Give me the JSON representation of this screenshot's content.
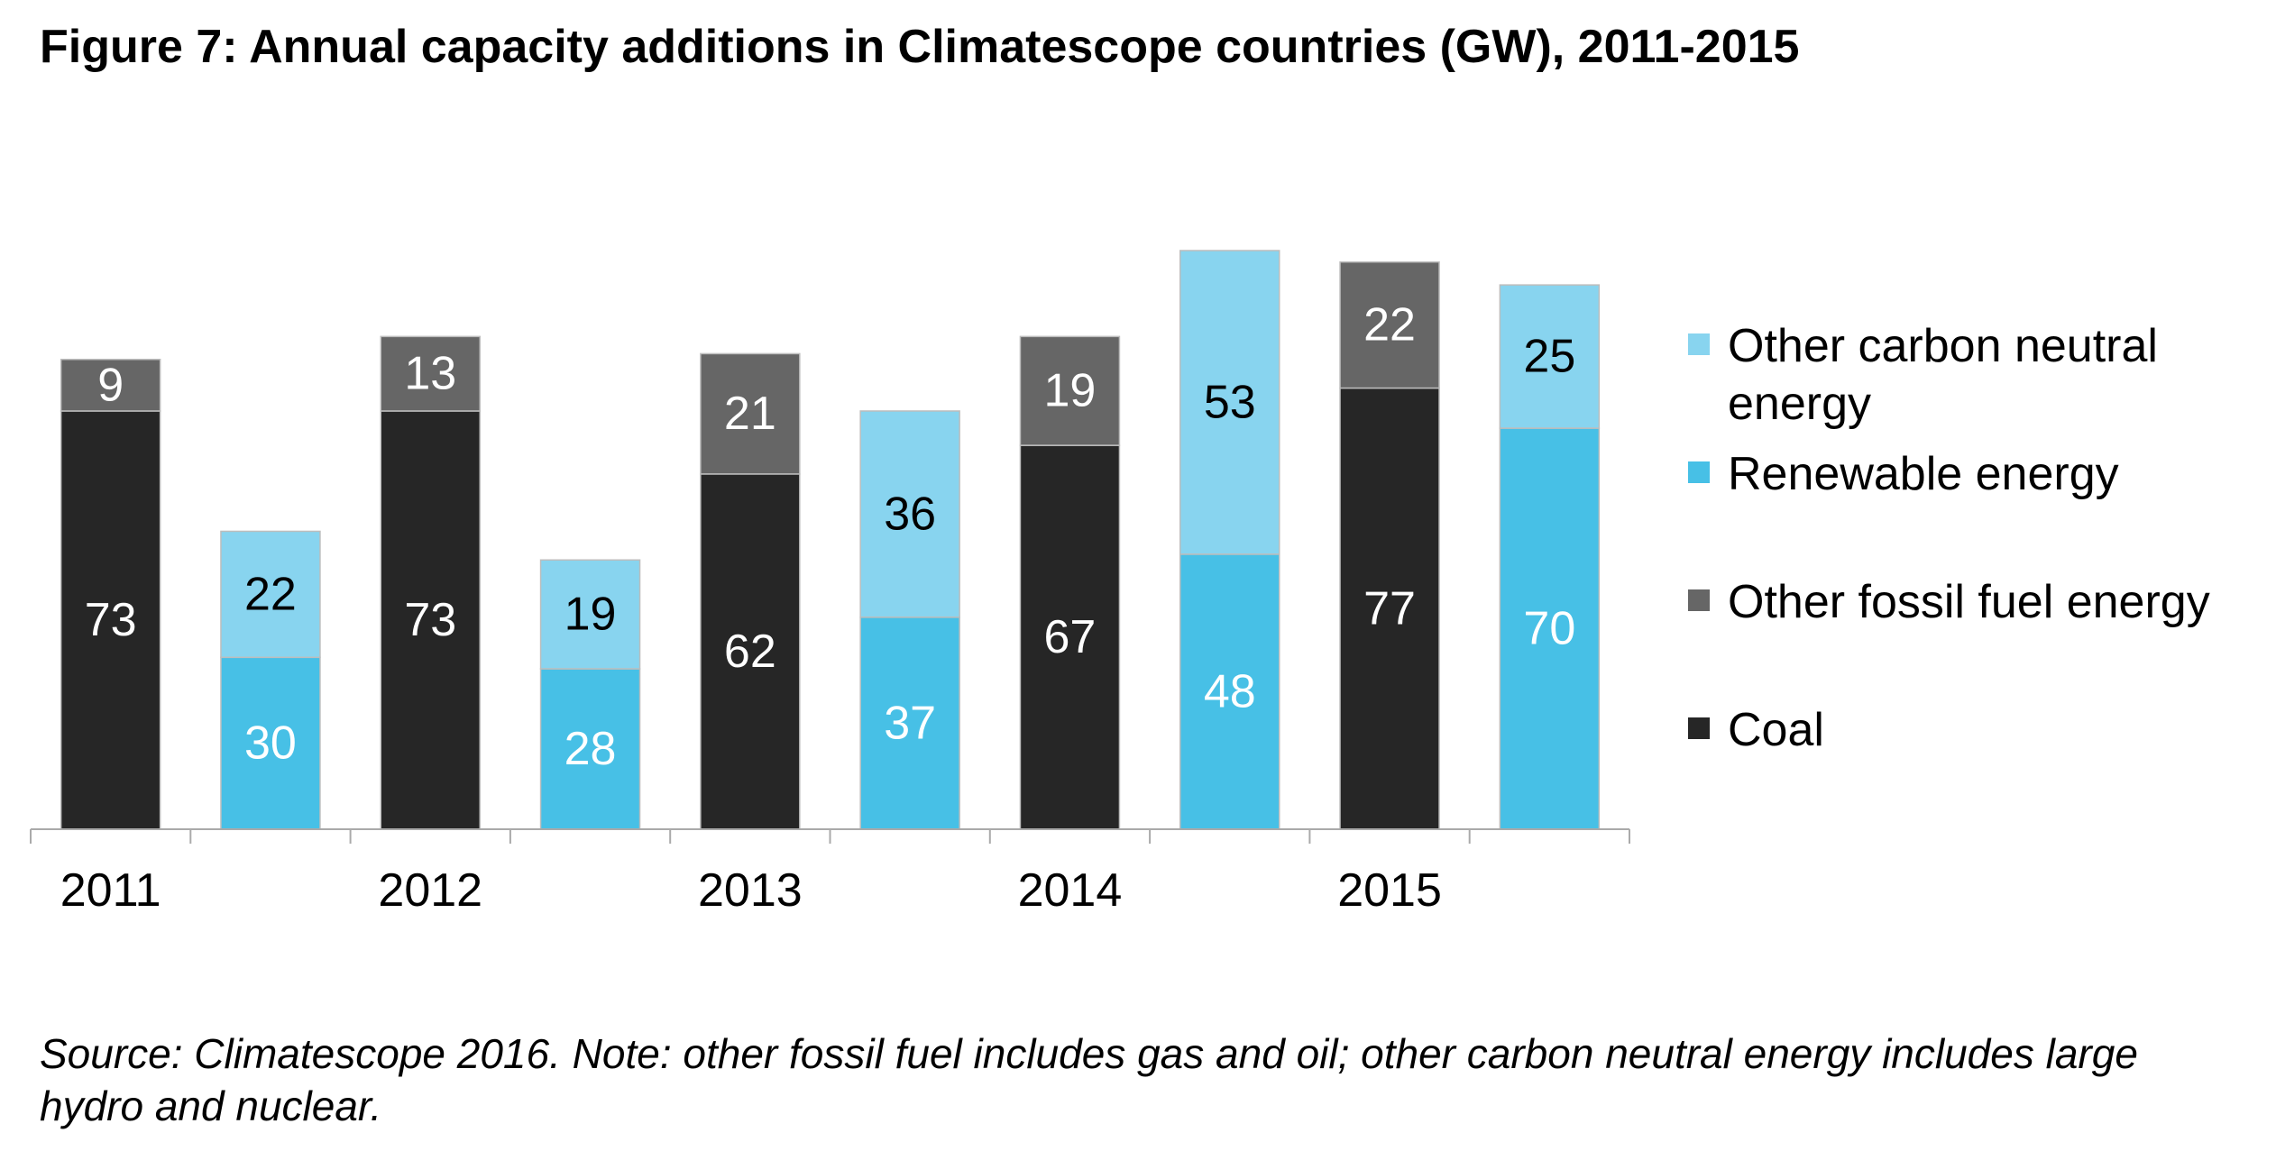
{
  "title": "Figure 7: Annual capacity additions in Climatescope countries (GW), 2011-2015",
  "source_note": "Source: Climatescope 2016. Note: other fossil fuel includes gas and oil; other carbon neutral energy includes large hydro and nuclear.",
  "colors": {
    "coal": "#262626",
    "other_fossil": "#666666",
    "renewable": "#47c0e6",
    "other_carbon_neutral": "#88d4ef",
    "axis": "#aaaaaa"
  },
  "chart_data": {
    "type": "bar",
    "stacked": true,
    "categories": [
      "2011",
      "2012",
      "2013",
      "2014",
      "2015"
    ],
    "unit": "GW",
    "legend_position": "right",
    "grid": false,
    "ylim": [
      0,
      115
    ],
    "groups": [
      {
        "category": "2011",
        "fossil": {
          "coal": 73,
          "other_fossil": 9
        },
        "carbon_neutral": {
          "renewable": 30,
          "other_carbon_neutral": 22
        }
      },
      {
        "category": "2012",
        "fossil": {
          "coal": 73,
          "other_fossil": 13
        },
        "carbon_neutral": {
          "renewable": 28,
          "other_carbon_neutral": 19
        }
      },
      {
        "category": "2013",
        "fossil": {
          "coal": 62,
          "other_fossil": 21
        },
        "carbon_neutral": {
          "renewable": 37,
          "other_carbon_neutral": 36
        }
      },
      {
        "category": "2014",
        "fossil": {
          "coal": 67,
          "other_fossil": 19
        },
        "carbon_neutral": {
          "renewable": 48,
          "other_carbon_neutral": 53
        }
      },
      {
        "category": "2015",
        "fossil": {
          "coal": 77,
          "other_fossil": 22
        },
        "carbon_neutral": {
          "renewable": 70,
          "other_carbon_neutral": 25
        }
      }
    ],
    "legend": [
      {
        "key": "other_carbon_neutral",
        "label": "Other carbon neutral energy"
      },
      {
        "key": "renewable",
        "label": "Renewable energy"
      },
      {
        "key": "other_fossil",
        "label": "Other fossil fuel energy"
      },
      {
        "key": "coal",
        "label": "Coal"
      }
    ]
  }
}
